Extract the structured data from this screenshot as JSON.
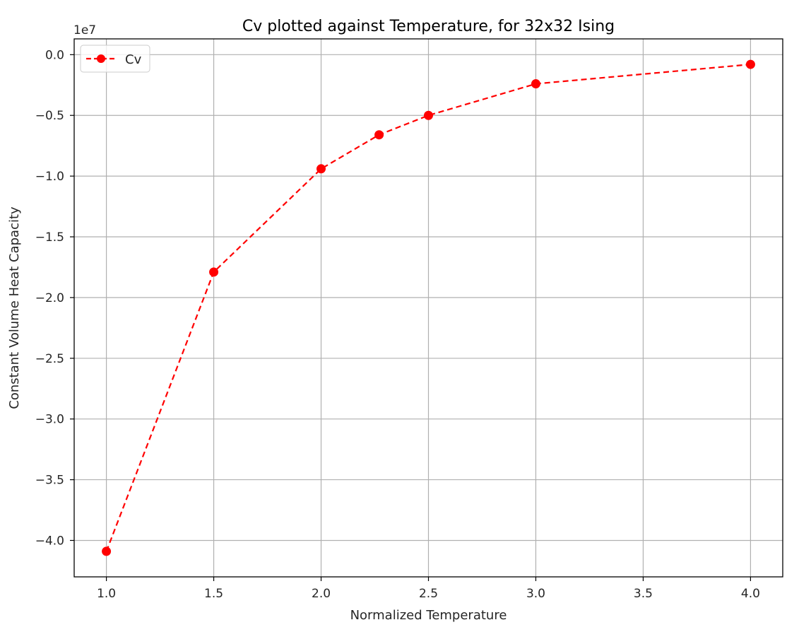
{
  "chart_data": {
    "type": "line",
    "title": "Cv plotted against Temperature, for 32x32 Ising",
    "xlabel": "Normalized Temperature",
    "ylabel": "Constant Volume Heat Capacity",
    "y_offset_label": "1e7",
    "xlim": [
      0.85,
      4.15
    ],
    "ylim": [
      -4.3,
      0.13
    ],
    "x_ticks": [
      1.0,
      1.5,
      2.0,
      2.5,
      3.0,
      3.5,
      4.0
    ],
    "x_tick_labels": [
      "1.0",
      "1.5",
      "2.0",
      "2.5",
      "3.0",
      "3.5",
      "4.0"
    ],
    "y_ticks": [
      0.0,
      -0.5,
      -1.0,
      -1.5,
      -2.0,
      -2.5,
      -3.0,
      -3.5,
      -4.0
    ],
    "y_tick_labels": [
      "0.0",
      "−0.5",
      "−1.0",
      "−1.5",
      "−2.0",
      "−2.5",
      "−3.0",
      "−3.5",
      "−4.0"
    ],
    "grid": true,
    "legend_position": "top-left",
    "series": [
      {
        "name": "Cv",
        "color": "#ff0000",
        "line_style": "dashed",
        "marker": "circle",
        "x": [
          1.0,
          1.5,
          2.0,
          2.27,
          2.5,
          3.0,
          4.0
        ],
        "y": [
          -4.09,
          -1.79,
          -0.94,
          -0.66,
          -0.5,
          -0.24,
          -0.08
        ]
      }
    ]
  }
}
